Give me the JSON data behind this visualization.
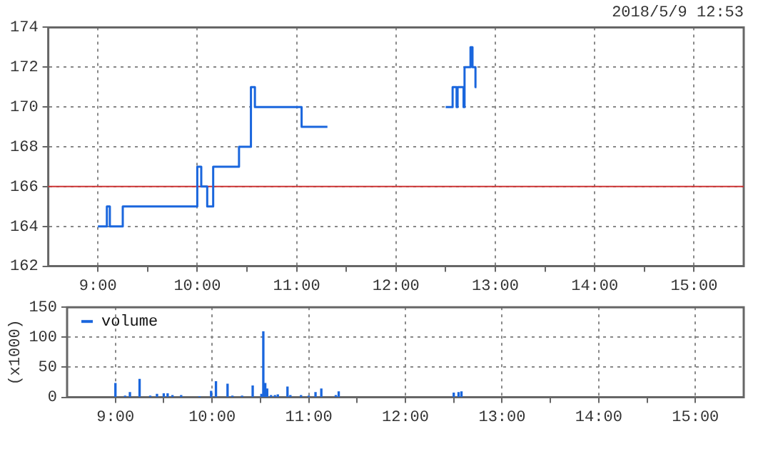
{
  "chart_data": [
    {
      "type": "step",
      "title": "2018/5/9 12:53",
      "series": [
        {
          "color": "#1a66dd",
          "x": [
            9.0,
            9.09,
            9.12,
            9.25,
            10.0,
            10.04,
            10.1,
            10.16,
            10.42,
            10.54,
            10.58,
            11.05,
            11.31,
            12.0,
            12.5,
            12.57,
            12.61,
            12.62,
            12.68,
            12.69,
            12.75,
            12.77,
            12.8,
            12.81
          ],
          "values": [
            164,
            165,
            164,
            165,
            167,
            166,
            165,
            167,
            168,
            171,
            170,
            169,
            169,
            null,
            170,
            171,
            170,
            171,
            170,
            172,
            173,
            172,
            171,
            171
          ]
        }
      ],
      "xlim": [
        8.5,
        15.5
      ],
      "xticks": [
        {
          "value": 9,
          "label": "9:00"
        },
        {
          "value": 9.5,
          "label": null
        },
        {
          "value": 10,
          "label": "10:00"
        },
        {
          "value": 10.5,
          "label": null
        },
        {
          "value": 11,
          "label": "11:00"
        },
        {
          "value": 11.5,
          "label": null
        },
        {
          "value": 12,
          "label": "12:00"
        },
        {
          "value": 12.5,
          "label": null
        },
        {
          "value": 13,
          "label": "13:00"
        },
        {
          "value": 13.5,
          "label": null
        },
        {
          "value": 14,
          "label": "14:00"
        },
        {
          "value": 14.5,
          "label": null
        },
        {
          "value": 15,
          "label": "15:00"
        }
      ],
      "ylim": [
        162,
        174
      ],
      "yticks": [
        162,
        164,
        166,
        168,
        170,
        172,
        174
      ],
      "ref_lines": [
        {
          "axis": "y",
          "value": 166,
          "color": "#cc3333"
        }
      ],
      "grid": true,
      "line_style": "solid",
      "marker": "none",
      "legend": false
    },
    {
      "type": "bar",
      "ylabel": "(x1000)",
      "series": [
        {
          "name": "volume",
          "color": "#1a66dd",
          "x": [
            9.0,
            9.1,
            9.15,
            9.25,
            9.36,
            9.43,
            9.5,
            9.54,
            9.59,
            9.68,
            9.87,
            9.99,
            10.04,
            10.16,
            10.21,
            10.31,
            10.42,
            10.51,
            10.53,
            10.55,
            10.57,
            10.61,
            10.65,
            10.68,
            10.78,
            10.81,
            10.92,
            11.0,
            11.07,
            11.13,
            11.28,
            11.31,
            12.5,
            12.55,
            12.58
          ],
          "values": [
            23,
            2,
            8,
            30,
            2,
            5,
            6,
            6,
            3,
            3,
            1,
            10,
            26,
            22,
            2,
            2,
            19,
            5,
            109,
            23,
            14,
            3,
            3,
            4,
            17,
            3,
            3,
            2,
            8,
            14,
            3,
            9,
            7,
            8,
            9
          ]
        }
      ],
      "xlim": [
        8.5,
        15.5
      ],
      "xticks": [
        {
          "value": 9,
          "label": "9:00"
        },
        {
          "value": 9.5,
          "label": null
        },
        {
          "value": 10,
          "label": "10:00"
        },
        {
          "value": 10.5,
          "label": null
        },
        {
          "value": 11,
          "label": "11:00"
        },
        {
          "value": 11.5,
          "label": null
        },
        {
          "value": 12,
          "label": "12:00"
        },
        {
          "value": 12.5,
          "label": null
        },
        {
          "value": 13,
          "label": "13:00"
        },
        {
          "value": 13.5,
          "label": null
        },
        {
          "value": 14,
          "label": "14:00"
        },
        {
          "value": 14.5,
          "label": null
        },
        {
          "value": 15,
          "label": "15:00"
        }
      ],
      "ylim": [
        0,
        150
      ],
      "yticks": [
        0,
        50,
        100,
        150
      ],
      "grid": true,
      "legend": "top left"
    }
  ]
}
